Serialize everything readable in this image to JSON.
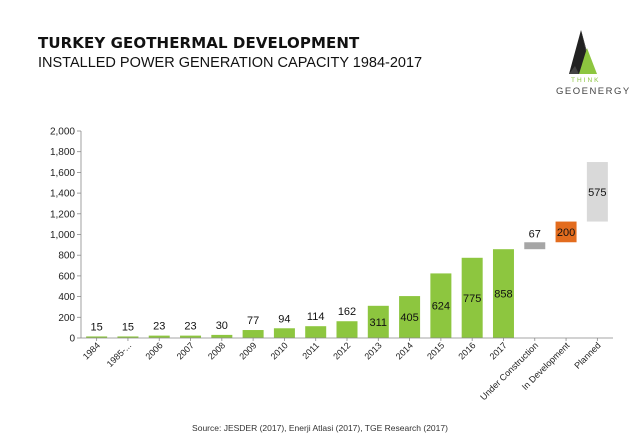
{
  "header": {
    "title": "TURKEY GEOTHERMAL DEVELOPMENT",
    "subtitle": "INSTALLED POWER GENERATION CAPACITY 1984-2017"
  },
  "logo": {
    "line1": "THINK",
    "line2": "GEOENERGY",
    "icon": "triangle-logo-icon",
    "colors": {
      "green": "#8dc63f",
      "dark": "#333333"
    }
  },
  "source": "Source: JESDER (2017), Enerji Atlasi (2017), TGE Research (2017)",
  "chart_data": {
    "type": "bar",
    "title": "",
    "xlabel": "",
    "ylabel": "",
    "ylim": [
      0,
      2000
    ],
    "yticks": [
      "0",
      "200",
      "400",
      "600",
      "800",
      "1,000",
      "1,200",
      "1,400",
      "1,600",
      "1,800",
      "2,000"
    ],
    "ytick_values": [
      0,
      200,
      400,
      600,
      800,
      1000,
      1200,
      1400,
      1600,
      1800,
      2000
    ],
    "grid": false,
    "legend": "none",
    "categories": [
      "1984",
      "1985-...",
      "2006",
      "2007",
      "2008",
      "2009",
      "2010",
      "2011",
      "2012",
      "2013",
      "2014",
      "2015",
      "2016",
      "2017",
      "Under Construction",
      "In Development",
      "Planned"
    ],
    "bars": [
      {
        "value": 15,
        "base": 0,
        "label": "15",
        "color": "#8dc63f"
      },
      {
        "value": 15,
        "base": 0,
        "label": "15",
        "color": "#8dc63f"
      },
      {
        "value": 23,
        "base": 0,
        "label": "23",
        "color": "#8dc63f"
      },
      {
        "value": 23,
        "base": 0,
        "label": "23",
        "color": "#8dc63f"
      },
      {
        "value": 30,
        "base": 0,
        "label": "30",
        "color": "#8dc63f"
      },
      {
        "value": 77,
        "base": 0,
        "label": "77",
        "color": "#8dc63f"
      },
      {
        "value": 94,
        "base": 0,
        "label": "94",
        "color": "#8dc63f"
      },
      {
        "value": 114,
        "base": 0,
        "label": "114",
        "color": "#8dc63f"
      },
      {
        "value": 162,
        "base": 0,
        "label": "162",
        "color": "#8dc63f"
      },
      {
        "value": 311,
        "base": 0,
        "label": "311",
        "color": "#8dc63f"
      },
      {
        "value": 405,
        "base": 0,
        "label": "405",
        "color": "#8dc63f"
      },
      {
        "value": 624,
        "base": 0,
        "label": "624",
        "color": "#8dc63f"
      },
      {
        "value": 775,
        "base": 0,
        "label": "775",
        "color": "#8dc63f"
      },
      {
        "value": 858,
        "base": 0,
        "label": "858",
        "color": "#8dc63f"
      },
      {
        "value": 67,
        "base": 858,
        "label": "67",
        "color": "#a6a6a6"
      },
      {
        "value": 200,
        "base": 925,
        "label": "200",
        "color": "#e36c1e"
      },
      {
        "value": 575,
        "base": 1125,
        "label": "575",
        "color": "#d9d9d9"
      }
    ]
  }
}
